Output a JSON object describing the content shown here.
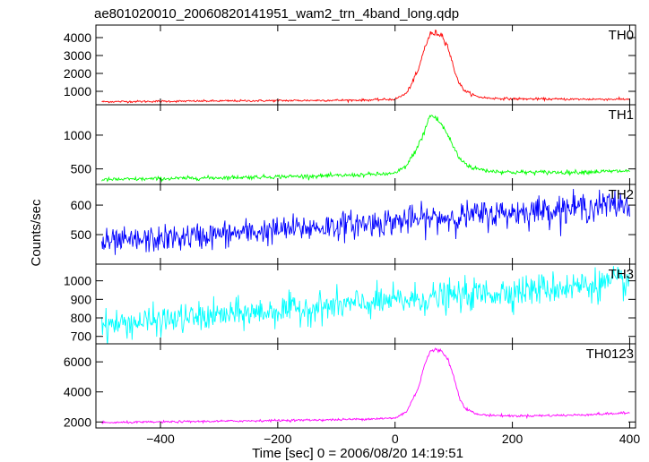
{
  "chart_data": {
    "type": "line",
    "title": "ae801020010_20060820141951_wam2_trn_4band_long.qdp",
    "xlabel": "Time [sec] 0 = 2006/08/20 14:19:51",
    "ylabel": "Counts/sec",
    "xlim": [
      -510,
      410
    ],
    "xticks": [
      -400,
      -200,
      0,
      200,
      400
    ],
    "grid": false,
    "panels": [
      {
        "name": "TH0",
        "color": "#ff0000",
        "ylim": [
          250,
          4700
        ],
        "yticks": [
          1000,
          2000,
          3000,
          4000
        ],
        "noise": 28,
        "x": [
          -500,
          -400,
          -300,
          -200,
          -100,
          -50,
          0,
          20,
          40,
          50,
          60,
          70,
          80,
          90,
          100,
          110,
          120,
          140,
          160,
          200,
          300,
          400
        ],
        "y": [
          420,
          440,
          460,
          480,
          500,
          510,
          560,
          900,
          2200,
          3400,
          4200,
          4250,
          4150,
          3500,
          2300,
          1400,
          1000,
          700,
          620,
          580,
          560,
          560
        ]
      },
      {
        "name": "TH1",
        "color": "#00ff00",
        "ylim": [
          270,
          1450
        ],
        "yticks": [
          500,
          1000
        ],
        "noise": 14,
        "x": [
          -500,
          -400,
          -300,
          -200,
          -100,
          0,
          20,
          40,
          50,
          60,
          70,
          80,
          90,
          100,
          110,
          130,
          160,
          200,
          300,
          400
        ],
        "y": [
          340,
          355,
          370,
          385,
          400,
          430,
          550,
          850,
          1050,
          1300,
          1250,
          1150,
          1000,
          820,
          650,
          520,
          470,
          450,
          450,
          470
        ]
      },
      {
        "name": "TH2",
        "color": "#0000ff",
        "ylim": [
          400,
          670
        ],
        "yticks": [
          500,
          600
        ],
        "noise": 22,
        "x": [
          -500,
          400
        ],
        "y": [
          470,
          605
        ]
      },
      {
        "name": "TH3",
        "color": "#00ffff",
        "ylim": [
          660,
          1090
        ],
        "yticks": [
          700,
          800,
          900,
          1000
        ],
        "noise": 38,
        "x": [
          -500,
          400
        ],
        "y": [
          760,
          995
        ]
      },
      {
        "name": "TH0123",
        "color": "#ff00ff",
        "ylim": [
          1600,
          7200
        ],
        "yticks": [
          2000,
          4000,
          6000
        ],
        "noise": 35,
        "x": [
          -500,
          -400,
          -300,
          -200,
          -100,
          0,
          20,
          40,
          50,
          60,
          70,
          80,
          90,
          100,
          110,
          120,
          140,
          160,
          200,
          300,
          400
        ],
        "y": [
          1950,
          2000,
          2050,
          2100,
          2150,
          2250,
          2700,
          4300,
          5800,
          6700,
          6800,
          6700,
          6200,
          5000,
          3600,
          2900,
          2500,
          2450,
          2400,
          2450,
          2600
        ]
      }
    ]
  }
}
